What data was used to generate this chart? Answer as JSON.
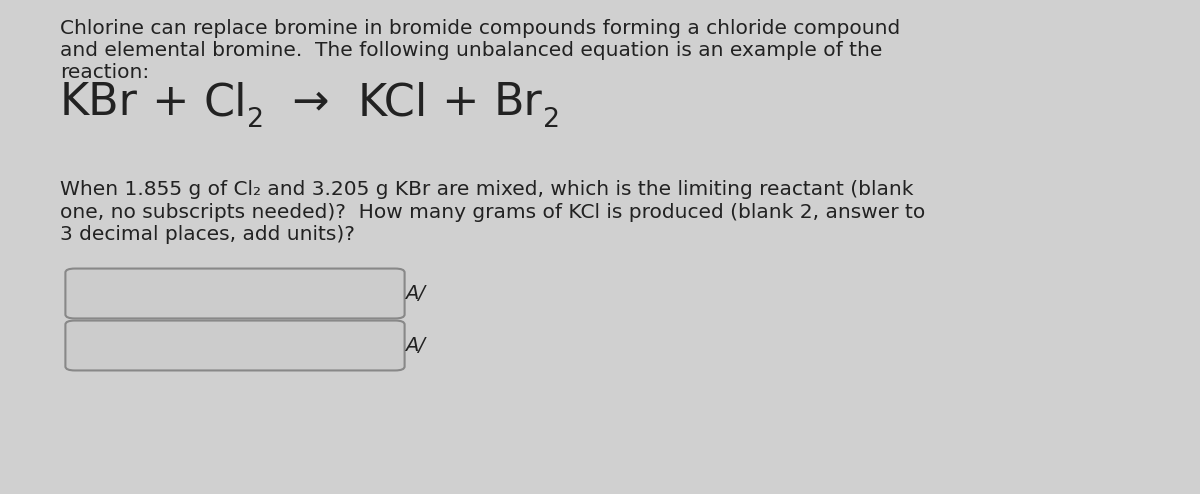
{
  "background_color": "#d0d0d0",
  "paragraph_text": "Chlorine can replace bromine in bromide compounds forming a chloride compound\nand elemental bromine.  The following unbalanced equation is an example of the\nreaction:",
  "eq_items": [
    {
      "text": "KBr",
      "sub": false
    },
    {
      "text": " + ",
      "sub": false
    },
    {
      "text": "Cl",
      "sub": false
    },
    {
      "text": "2",
      "sub": true
    },
    {
      "text": "  →  ",
      "sub": false
    },
    {
      "text": "KCl",
      "sub": false
    },
    {
      "text": " + ",
      "sub": false
    },
    {
      "text": "Br",
      "sub": false
    },
    {
      "text": "2",
      "sub": true
    }
  ],
  "question_text": "When 1.855 g of Cl₂ and 3.205 g KBr are mixed, which is the limiting reactant (blank\none, no subscripts needed)?  How many grams of KCl is produced (blank 2, answer to\n3 decimal places, add units)?",
  "para_fontsize": 14.5,
  "eq_fontsize": 32,
  "q_fontsize": 14.5,
  "text_color": "#222222",
  "box_facecolor": "#cccccc",
  "box_edgecolor": "#888888",
  "symbol_char": "A/",
  "symbol_fontsize": 14
}
